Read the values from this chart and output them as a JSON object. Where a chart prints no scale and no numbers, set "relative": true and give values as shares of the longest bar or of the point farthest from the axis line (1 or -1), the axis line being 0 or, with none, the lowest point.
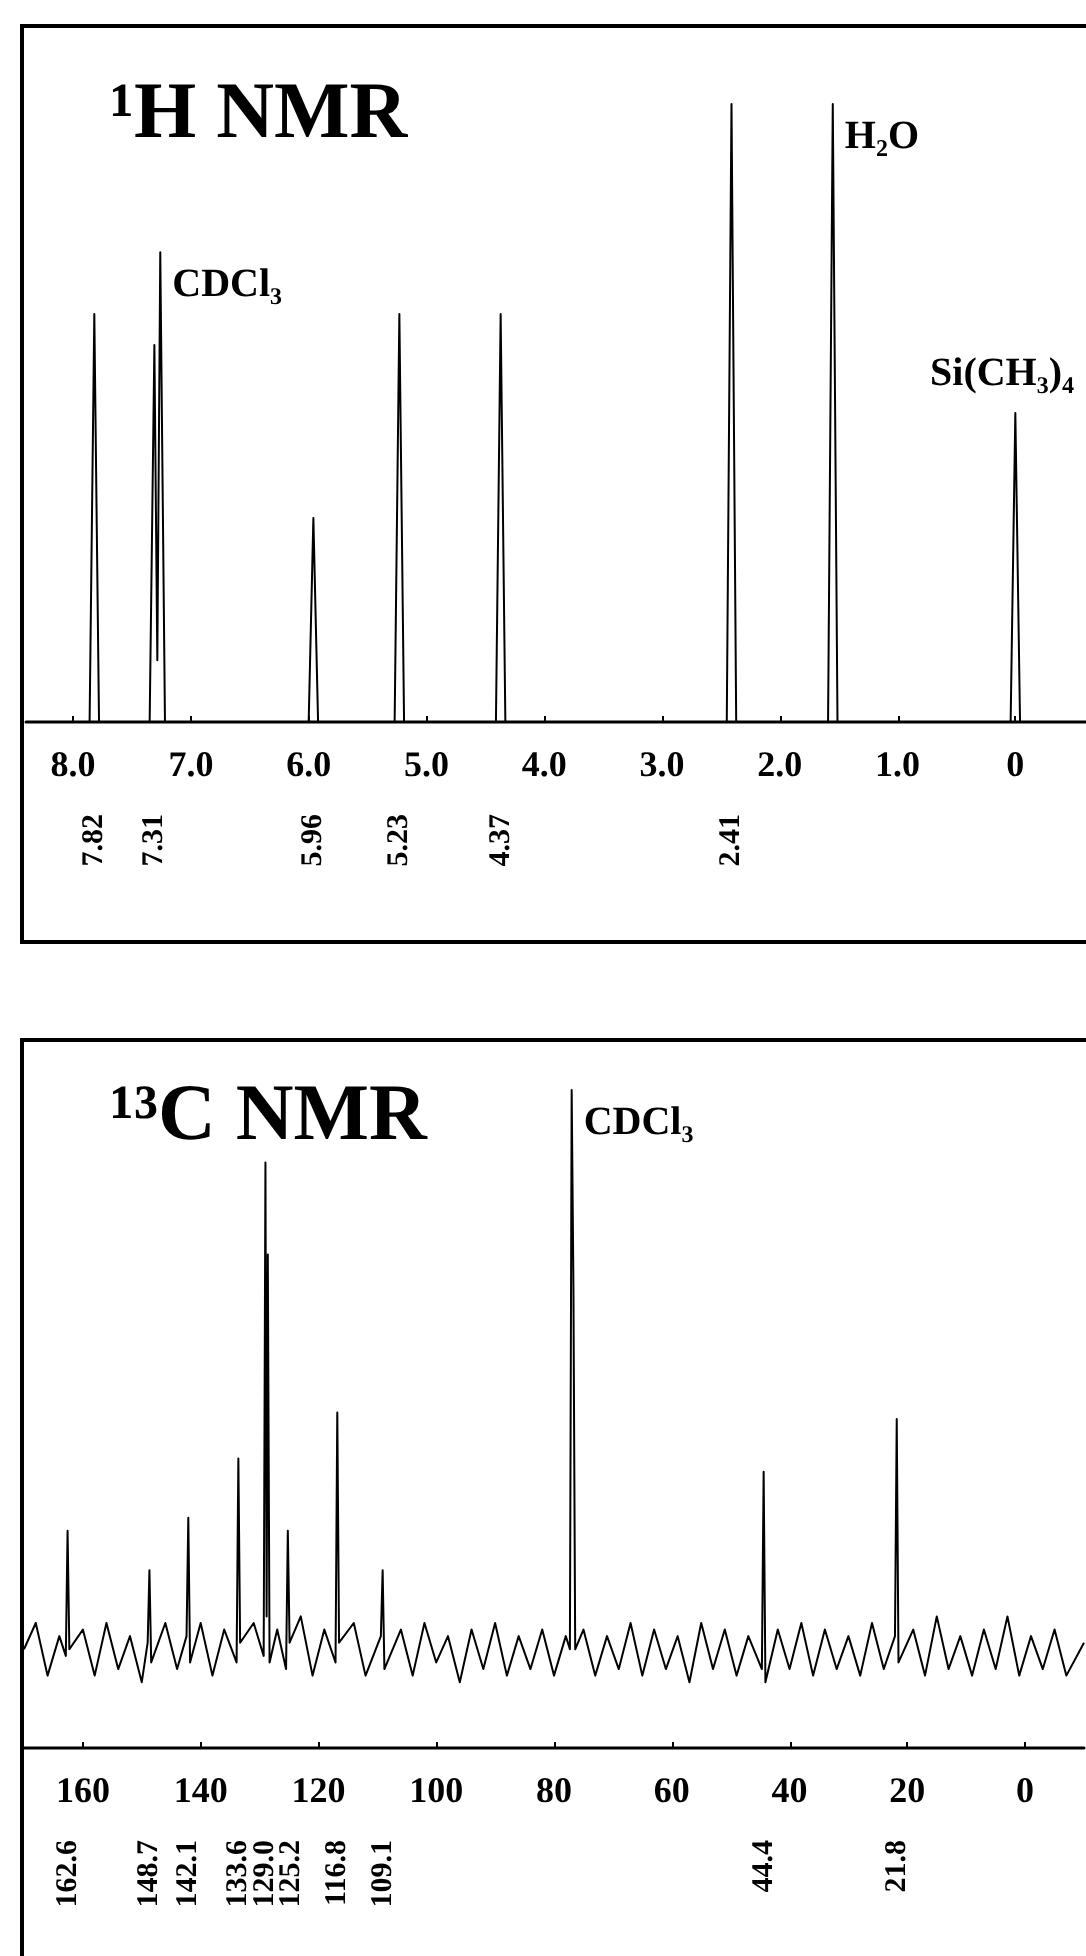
{
  "chart_data": [
    {
      "type": "line",
      "title": "¹H NMR",
      "relative": true,
      "marker": "none",
      "tick_labels": "x",
      "x": [
        8.4,
        7.86,
        7.82,
        7.78,
        7.35,
        7.31,
        7.285,
        7.26,
        7.22,
        6.0,
        5.96,
        5.92,
        5.27,
        5.23,
        5.19,
        4.41,
        4.37,
        4.33,
        2.45,
        2.41,
        2.37,
        1.59,
        1.55,
        1.51,
        0.04,
        0,
        -0.04,
        -0.6
      ],
      "series": [
        {
          "color": "#000000",
          "values": [
            0,
            0,
            0.66,
            0,
            0,
            0.61,
            0.1,
            0.76,
            0,
            0,
            0.33,
            0,
            0,
            0.66,
            0,
            0,
            0.66,
            0,
            0,
            1,
            0,
            0,
            1,
            0,
            0,
            0.5,
            0,
            0
          ]
        }
      ],
      "xlim": [
        8.4,
        -0.6
      ],
      "xticks": [
        {
          "value": 8,
          "label": "8.0"
        },
        {
          "value": 7,
          "label": "7.0"
        },
        {
          "value": 6,
          "label": "6.0"
        },
        {
          "value": 5,
          "label": "5.0"
        },
        {
          "value": 4,
          "label": "4.0"
        },
        {
          "value": 3,
          "label": "3.0"
        },
        {
          "value": 2,
          "label": "2.0"
        },
        {
          "value": 1,
          "label": "1.0"
        },
        0
      ],
      "annotations": [
        {
          "text": "CDCl₃",
          "x": 7.26,
          "y": 0.76
        },
        {
          "text": "H₂O",
          "x": 1.55,
          "y": 1
        },
        {
          "text": "Si(CH₃)₄",
          "x": 0,
          "y": 0.5
        },
        "7.82",
        "7.31",
        "5.96",
        "5.23",
        "4.37",
        "2.41"
      ]
    },
    {
      "type": "line",
      "title": "¹³C NMR",
      "relative": true,
      "marker": "none",
      "tick_labels": "x",
      "x": [
        170,
        168,
        166,
        164,
        162.9,
        162.6,
        162.3,
        160,
        158,
        156,
        154,
        152,
        150,
        149,
        148.7,
        148.4,
        146,
        144,
        142.4,
        142.1,
        141.8,
        140,
        138,
        136,
        133.9,
        133.6,
        133.3,
        131,
        129.3,
        129.0,
        128.8,
        128.6,
        128.3,
        127,
        125.5,
        125.2,
        124.9,
        123,
        121,
        119,
        117.1,
        116.8,
        116.5,
        114,
        112,
        109.4,
        109.1,
        108.8,
        106,
        104,
        102,
        100,
        98,
        96,
        94,
        92,
        90,
        88,
        86,
        84,
        82,
        80,
        78,
        77.3,
        77.0,
        76.7,
        76.4,
        75,
        73,
        71,
        69,
        67,
        65,
        63,
        61,
        59,
        57,
        55,
        53,
        51,
        49,
        47,
        44.7,
        44.4,
        44.1,
        42,
        40,
        38,
        36,
        34,
        32,
        30,
        28,
        26,
        24,
        22.1,
        21.8,
        21.5,
        19,
        17,
        15,
        13,
        11,
        9,
        7,
        5,
        3,
        1,
        -1,
        -3,
        -5,
        -7,
        -10
      ],
      "series": [
        {
          "color": "#000000",
          "values": [
            0.15,
            0.19,
            0.11,
            0.17,
            0.14,
            0.33,
            0.15,
            0.18,
            0.11,
            0.19,
            0.12,
            0.17,
            0.1,
            0.16,
            0.27,
            0.13,
            0.19,
            0.12,
            0.17,
            0.35,
            0.13,
            0.19,
            0.11,
            0.18,
            0.13,
            0.44,
            0.16,
            0.19,
            0.14,
            0.89,
            0.2,
            0.75,
            0.13,
            0.18,
            0.12,
            0.33,
            0.16,
            0.2,
            0.11,
            0.18,
            0.13,
            0.51,
            0.16,
            0.19,
            0.11,
            0.17,
            0.27,
            0.12,
            0.18,
            0.11,
            0.19,
            0.13,
            0.17,
            0.1,
            0.18,
            0.12,
            0.19,
            0.11,
            0.17,
            0.12,
            0.18,
            0.11,
            0.17,
            0.15,
            1,
            0.7,
            0.15,
            0.18,
            0.11,
            0.17,
            0.12,
            0.19,
            0.11,
            0.18,
            0.12,
            0.17,
            0.1,
            0.19,
            0.12,
            0.18,
            0.11,
            0.17,
            0.12,
            0.42,
            0.1,
            0.18,
            0.12,
            0.19,
            0.11,
            0.18,
            0.12,
            0.17,
            0.11,
            0.19,
            0.12,
            0.17,
            0.5,
            0.13,
            0.18,
            0.11,
            0.2,
            0.12,
            0.17,
            0.11,
            0.18,
            0.12,
            0.2,
            0.11,
            0.17,
            0.12,
            0.18,
            0.11,
            0.16
          ]
        }
      ],
      "xlim": [
        170,
        -10
      ],
      "xticks": [
        160,
        140,
        120,
        100,
        80,
        60,
        40,
        20,
        0
      ],
      "annotations": [
        {
          "text": "CDCl₃",
          "x": 77.0,
          "y": 1
        },
        "162.6",
        "148.7",
        "142.1",
        "133.6",
        "129.0",
        "125.2",
        "116.8",
        "109.1",
        "44.4",
        "21.8"
      ]
    }
  ]
}
